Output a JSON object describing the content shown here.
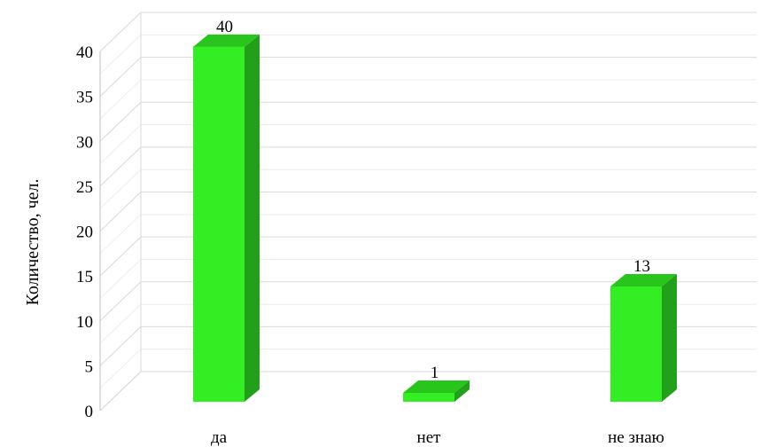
{
  "chart_data": {
    "type": "bar",
    "title": "",
    "xlabel": "",
    "ylabel": "Количество, чел.",
    "categories": [
      "да",
      "нет",
      "не знаю"
    ],
    "values": [
      40,
      1,
      13
    ],
    "ylim": [
      0,
      40
    ],
    "yticks": [
      0,
      5,
      10,
      15,
      20,
      25,
      30,
      35,
      40
    ],
    "ytick_labels": [
      "0",
      "5",
      "10",
      "15",
      "20",
      "25",
      "30",
      "35",
      "40"
    ],
    "data_labels": [
      "40",
      "1",
      "13"
    ],
    "grid": true,
    "style": "3d",
    "legend": "none",
    "colors": {
      "bar_front": "#33ee22",
      "bar_side": "#22a019",
      "bar_top": "#28c51c",
      "grid": "#d9d9d9",
      "axis": "#bfbfbf"
    }
  }
}
